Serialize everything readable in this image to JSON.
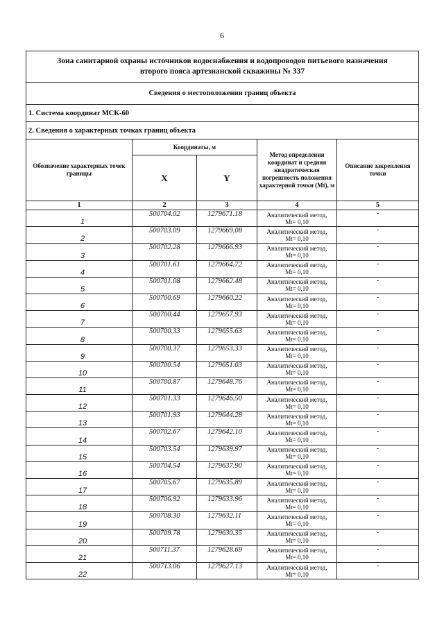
{
  "page_number": "6",
  "title": "Зона санитарной охраны источников водоснабжения и водопроводов питьевого назначения второго пояса артезианской скважины № 337",
  "section": "Сведения о местоположении границ объекта",
  "coord_system": "1. Система координат МСК-60",
  "points_heading": "2. Сведения о характерных точках границ объекта",
  "headers": {
    "point": "Обозначение характерных точек границы",
    "coords": "Координаты, м",
    "x": "X",
    "y": "Y",
    "method": "Метод определения координат и средняя квадратическая погрешность положения характерной точки (Mt), м",
    "description": "Описание закрепления точки"
  },
  "column_numbers": [
    "1",
    "2",
    "3",
    "4",
    "5"
  ],
  "rows": [
    {
      "n": "1",
      "x": "500704.02",
      "y": "1279671.18",
      "method": "Аналитический метод,",
      "accuracy": "Mt= 0,10",
      "desc": "-"
    },
    {
      "n": "2",
      "x": "500703.09",
      "y": "1279669.08",
      "method": "Аналитический метод,",
      "accuracy": "Mt= 0,10",
      "desc": "-"
    },
    {
      "n": "3",
      "x": "500702.28",
      "y": "1279666.93",
      "method": "Аналитический метод,",
      "accuracy": "Mt= 0,10",
      "desc": "-"
    },
    {
      "n": "4",
      "x": "500701.61",
      "y": "1279664.72",
      "method": "Аналитический метод,",
      "accuracy": "Mt= 0,10",
      "desc": "-"
    },
    {
      "n": "5",
      "x": "500701.08",
      "y": "1279662.48",
      "method": "Аналитический метод,",
      "accuracy": "Mt= 0,10",
      "desc": "-"
    },
    {
      "n": "6",
      "x": "500700.69",
      "y": "1279660.22",
      "method": "Аналитический метод,",
      "accuracy": "Mt= 0,10",
      "desc": "-"
    },
    {
      "n": "7",
      "x": "500700.44",
      "y": "1279657.93",
      "method": "Аналитический метод,",
      "accuracy": "Mt= 0,10",
      "desc": "-"
    },
    {
      "n": "8",
      "x": "500700.33",
      "y": "1279655.63",
      "method": "Аналитический метод,",
      "accuracy": "Mt= 0,10",
      "desc": "-"
    },
    {
      "n": "9",
      "x": "500700.37",
      "y": "1279653.33",
      "method": "Аналитический метод,",
      "accuracy": "Mt= 0,10",
      "desc": "-"
    },
    {
      "n": "10",
      "x": "500700.54",
      "y": "1279651.03",
      "method": "Аналитический метод,",
      "accuracy": "Mt= 0,10",
      "desc": "-"
    },
    {
      "n": "11",
      "x": "500700.87",
      "y": "1279648.76",
      "method": "Аналитический метод,",
      "accuracy": "Mt= 0,10",
      "desc": "-"
    },
    {
      "n": "12",
      "x": "500701.33",
      "y": "1279646.50",
      "method": "Аналитический метод,",
      "accuracy": "Mt= 0,10",
      "desc": "-"
    },
    {
      "n": "13",
      "x": "500701.93",
      "y": "1279644.28",
      "method": "Аналитический метод,",
      "accuracy": "Mt= 0,10",
      "desc": "-"
    },
    {
      "n": "14",
      "x": "500702.67",
      "y": "1279642.10",
      "method": "Аналитический метод,",
      "accuracy": "Mt= 0,10",
      "desc": "-"
    },
    {
      "n": "15",
      "x": "500703.54",
      "y": "1279639.97",
      "method": "Аналитический метод,",
      "accuracy": "Mt= 0,10",
      "desc": "-"
    },
    {
      "n": "16",
      "x": "500704.54",
      "y": "1279637.90",
      "method": "Аналитический метод,",
      "accuracy": "Mt= 0,10",
      "desc": "-"
    },
    {
      "n": "17",
      "x": "500705.67",
      "y": "1279635.89",
      "method": "Аналитический метод,",
      "accuracy": "Mt= 0,10",
      "desc": "-"
    },
    {
      "n": "18",
      "x": "500706.92",
      "y": "1279633.96",
      "method": "Аналитический метод,",
      "accuracy": "Mt= 0,10",
      "desc": "-"
    },
    {
      "n": "19",
      "x": "500708.30",
      "y": "1279632.11",
      "method": "Аналитический метод,",
      "accuracy": "Mt= 0,10",
      "desc": "-"
    },
    {
      "n": "20",
      "x": "500709.78",
      "y": "1279630.35",
      "method": "Аналитический метод,",
      "accuracy": "Mt= 0,10",
      "desc": "-"
    },
    {
      "n": "21",
      "x": "500711.37",
      "y": "1279628.69",
      "method": "Аналитический метод,",
      "accuracy": "Mt= 0,10",
      "desc": "-"
    },
    {
      "n": "22",
      "x": "500713.06",
      "y": "1279627.13",
      "method": "Аналитический метод,",
      "accuracy": "Mt= 0,10",
      "desc": "-"
    }
  ]
}
